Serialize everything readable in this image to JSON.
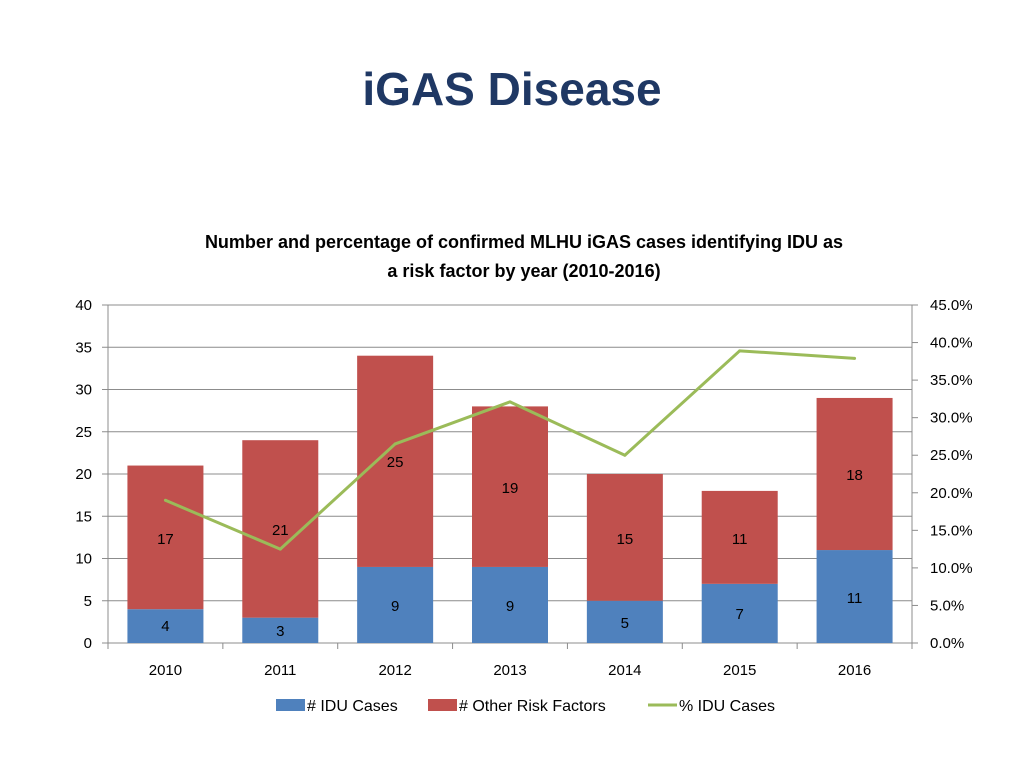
{
  "slide": {
    "title": "iGAS Disease"
  },
  "chart_data": {
    "type": "bar",
    "stacked": true,
    "title_lines": [
      "Number and percentage of confirmed MLHU iGAS cases identifying IDU as",
      "a risk factor by year (2010-2016)"
    ],
    "categories": [
      "2010",
      "2011",
      "2012",
      "2013",
      "2014",
      "2015",
      "2016"
    ],
    "series": [
      {
        "name": "# IDU Cases",
        "kind": "bar",
        "axis": "left",
        "color": "#4f81bd",
        "values": [
          4,
          3,
          9,
          9,
          5,
          7,
          11
        ]
      },
      {
        "name": "# Other Risk Factors",
        "kind": "bar",
        "axis": "left",
        "color": "#c0504d",
        "values": [
          17,
          21,
          25,
          19,
          15,
          11,
          18
        ]
      },
      {
        "name": "% IDU Cases",
        "kind": "line",
        "axis": "right",
        "color": "#9bbb59",
        "values": [
          19.0,
          12.5,
          26.5,
          32.1,
          25.0,
          38.9,
          37.9
        ]
      }
    ],
    "ylim": [
      0,
      40
    ],
    "yticks": [
      0,
      5,
      10,
      15,
      20,
      25,
      30,
      35,
      40
    ],
    "y2lim": [
      0,
      45
    ],
    "y2ticks": [
      "0.0%",
      "5.0%",
      "10.0%",
      "15.0%",
      "20.0%",
      "25.0%",
      "30.0%",
      "35.0%",
      "40.0%",
      "45.0%"
    ],
    "grid": true,
    "legend": "bottom"
  }
}
